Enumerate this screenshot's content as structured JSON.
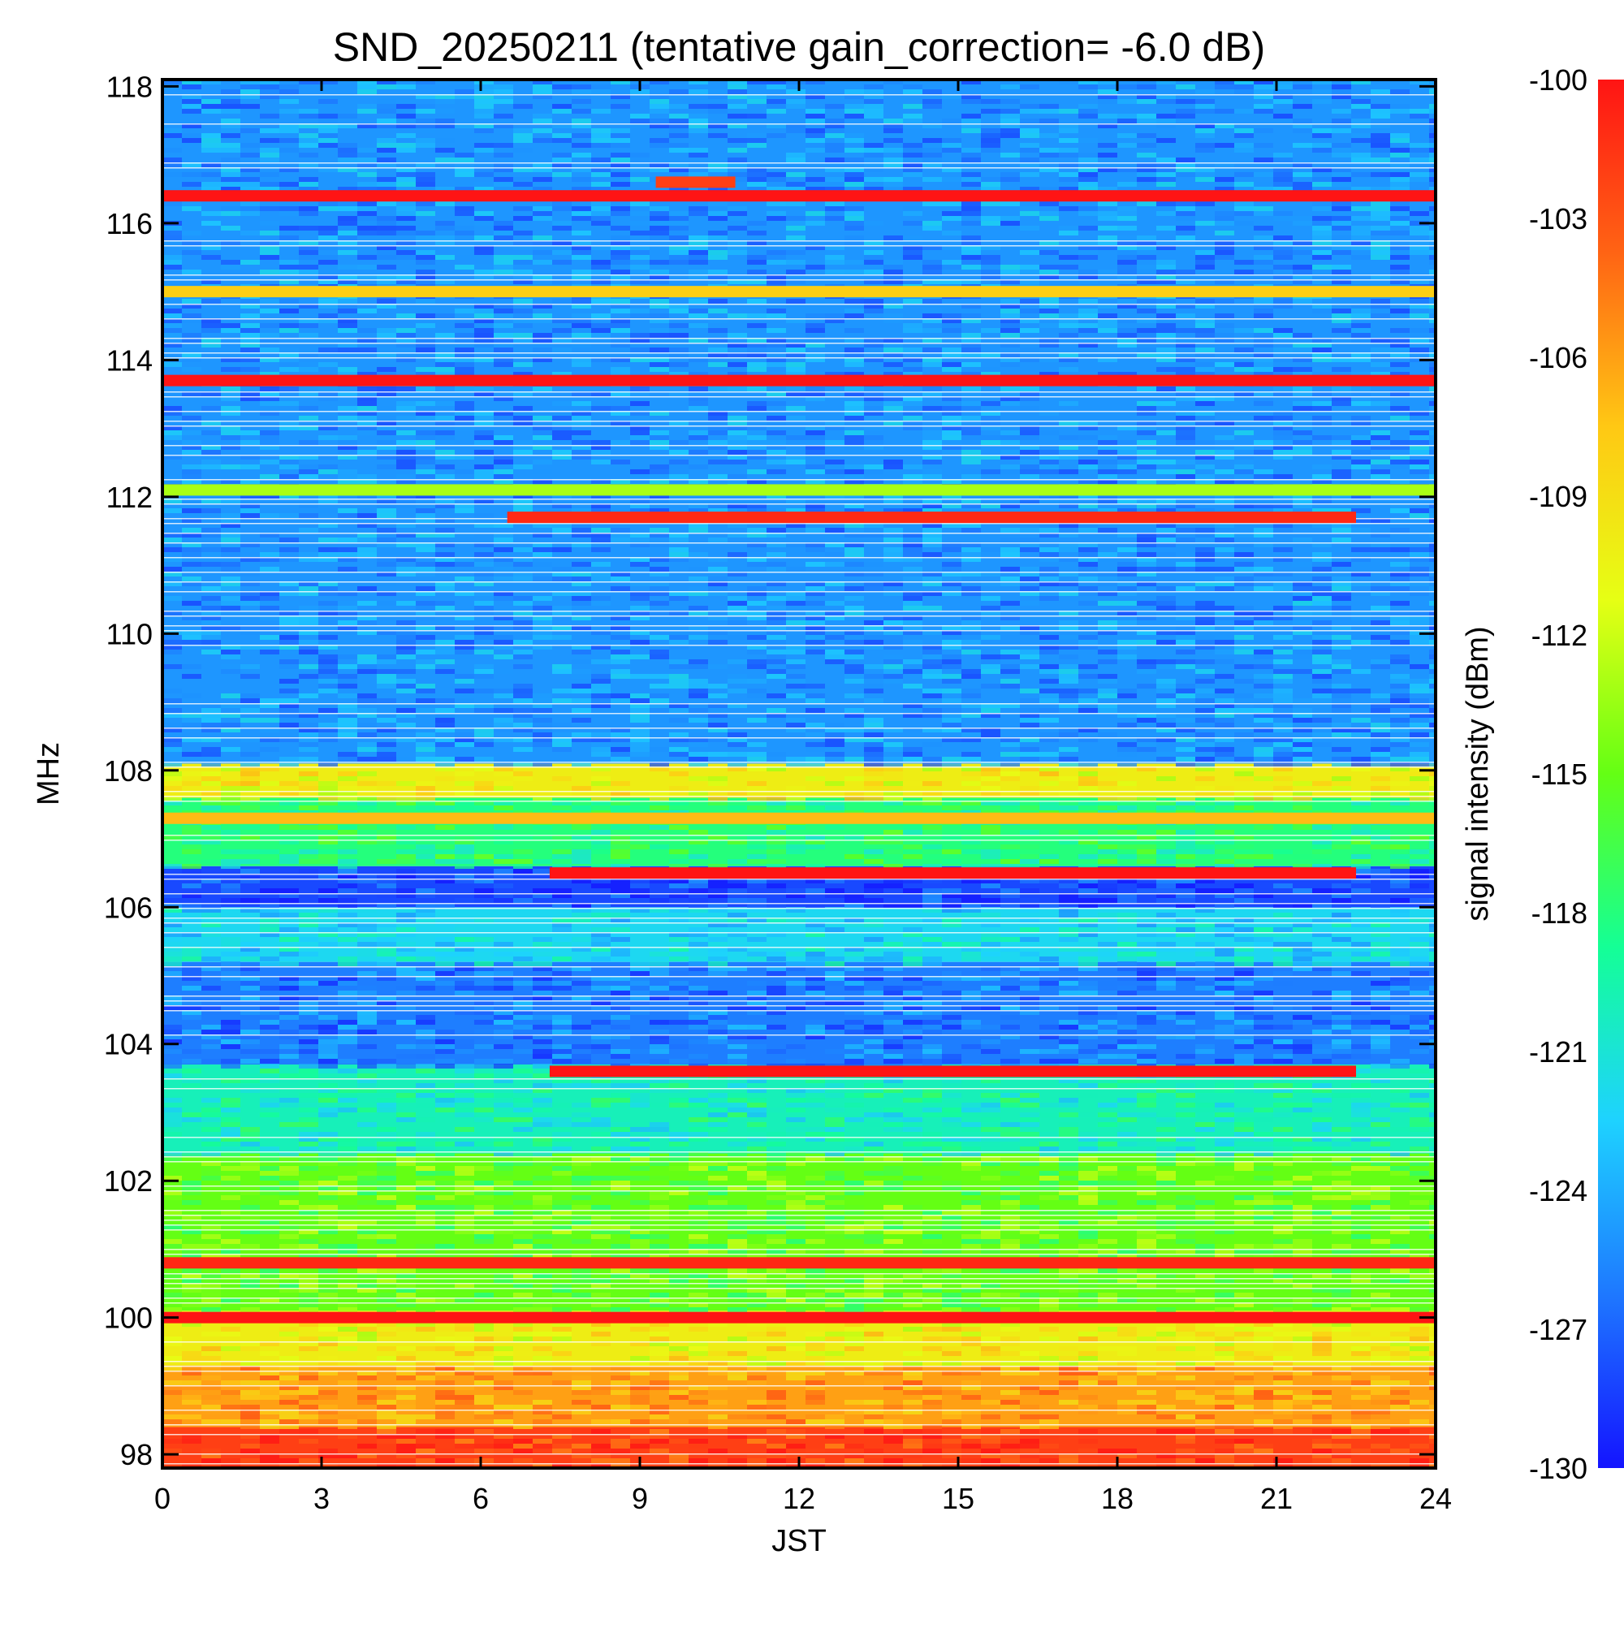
{
  "chart_data": {
    "type": "heatmap",
    "title": "SND_20250211 (tentative gain_correction= -6.0 dB)",
    "xlabel": "JST",
    "ylabel": "MHz",
    "colorbar_label": "signal intensity (dBm)",
    "xlim": [
      0,
      24
    ],
    "ylim": [
      97.8,
      118.1
    ],
    "color_range": [
      -130,
      -100
    ],
    "x_ticks": [
      0,
      3,
      6,
      9,
      12,
      15,
      18,
      21,
      24
    ],
    "x_tick_labels": [
      "0",
      "3",
      "6",
      "9",
      "12",
      "15",
      "18",
      "21",
      "24"
    ],
    "y_ticks": [
      98,
      100,
      102,
      104,
      106,
      108,
      110,
      112,
      114,
      116,
      118
    ],
    "y_tick_labels": [
      "98",
      "100",
      "102",
      "104",
      "106",
      "108",
      "110",
      "112",
      "114",
      "116",
      "118"
    ],
    "colorbar_ticks": [
      -100,
      -103,
      -106,
      -109,
      -112,
      -115,
      -118,
      -121,
      -124,
      -127,
      -130
    ],
    "colorbar_tick_labels": [
      "-100",
      "-103",
      "-106",
      "-109",
      "-112",
      "-115",
      "-118",
      "-121",
      "-124",
      "-127",
      "-130"
    ],
    "colormap": [
      "#1414ff",
      "#1e78ff",
      "#1ed2ff",
      "#14ff96",
      "#64ff14",
      "#e6ff14",
      "#ffc814",
      "#ff6414",
      "#ff1414"
    ],
    "background_profile": [
      {
        "from_mhz": 97.8,
        "to_mhz": 98.4,
        "dbm": -102
      },
      {
        "from_mhz": 98.4,
        "to_mhz": 99.3,
        "dbm": -106
      },
      {
        "from_mhz": 99.3,
        "to_mhz": 100.1,
        "dbm": -110
      },
      {
        "from_mhz": 100.1,
        "to_mhz": 102.4,
        "dbm": -115
      },
      {
        "from_mhz": 102.4,
        "to_mhz": 103.7,
        "dbm": -120
      },
      {
        "from_mhz": 103.7,
        "to_mhz": 105.2,
        "dbm": -126
      },
      {
        "from_mhz": 105.2,
        "to_mhz": 106.0,
        "dbm": -122
      },
      {
        "from_mhz": 106.0,
        "to_mhz": 106.6,
        "dbm": -128
      },
      {
        "from_mhz": 106.6,
        "to_mhz": 107.6,
        "dbm": -118
      },
      {
        "from_mhz": 107.6,
        "to_mhz": 108.1,
        "dbm": -110
      },
      {
        "from_mhz": 108.1,
        "to_mhz": 118.1,
        "dbm": -125
      }
    ],
    "strong_signals": [
      {
        "mhz": 100.0,
        "t_start": 0,
        "t_end": 24,
        "dbm": -100
      },
      {
        "mhz": 100.8,
        "t_start": 0,
        "t_end": 24,
        "dbm": -101
      },
      {
        "mhz": 103.6,
        "t_start": 7.3,
        "t_end": 22.5,
        "dbm": -100
      },
      {
        "mhz": 106.5,
        "t_start": 7.3,
        "t_end": 22.5,
        "dbm": -100
      },
      {
        "mhz": 107.3,
        "t_start": 0,
        "t_end": 24,
        "dbm": -107
      },
      {
        "mhz": 111.7,
        "t_start": 6.5,
        "t_end": 22.5,
        "dbm": -101
      },
      {
        "mhz": 112.1,
        "t_start": 0,
        "t_end": 24,
        "dbm": -113
      },
      {
        "mhz": 113.7,
        "t_start": 0,
        "t_end": 24,
        "dbm": -100
      },
      {
        "mhz": 115.0,
        "t_start": 0,
        "t_end": 24,
        "dbm": -108
      },
      {
        "mhz": 116.4,
        "t_start": 0,
        "t_end": 24,
        "dbm": -100
      },
      {
        "mhz": 116.6,
        "t_start": 9.3,
        "t_end": 10.8,
        "dbm": -102
      }
    ],
    "grid": false,
    "legend": "colorbar-right"
  }
}
